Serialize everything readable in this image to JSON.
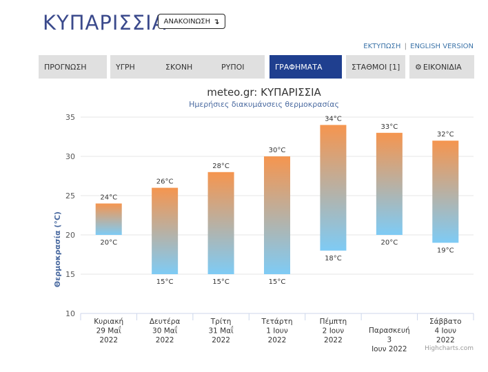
{
  "page": {
    "city": "ΚΥΠΑΡΙΣΣΙΑ",
    "announcement_label": "ΑΝΑΚΟΙΝΩΣΗ",
    "announcement_icon": "arrow-turn-down-icon",
    "print_link": "ΕΚΤΥΠΩΣΗ",
    "link_separator": "|",
    "english_link": "ENGLISH VERSION"
  },
  "tabs": [
    {
      "label": "ΠΡΟΓΝΩΣΗ",
      "active": false
    },
    {
      "label": "ΥΓΡΗ",
      "active": false
    },
    {
      "label": "ΣΚΟΝΗ",
      "active": false
    },
    {
      "label": "ΡΥΠΟΙ",
      "active": false
    },
    {
      "label": "ΓΡΑΦΗΜΑΤΑ",
      "active": true
    },
    {
      "label": "ΣΤΑΘΜΟΙ [1]",
      "active": false
    },
    {
      "label": "ΕΙΚΟΝΙΔΙΑ",
      "active": false,
      "icon": "gear-icon"
    }
  ],
  "colors": {
    "accent": "#1f3f8f",
    "title_text": "#3b4a8c",
    "bar_top": "#f5954f",
    "bar_bottom": "#7ecbf5"
  },
  "chart_data": {
    "type": "bar",
    "subtype": "columnrange",
    "title": "meteo.gr: ΚΥΠΑΡΙΣΣΙΑ",
    "subtitle": "Ημερήσιες διακυμάνσεις θερμοκρασίας",
    "ylabel": "Θερμοκρασία (°C)",
    "ylim": [
      10,
      35
    ],
    "yticks": [
      10,
      15,
      20,
      25,
      30,
      35
    ],
    "grid": true,
    "categories": [
      [
        "Κυριακή",
        "29 Μαΐ",
        "2022"
      ],
      [
        "Δευτέρα",
        "30 Μαΐ",
        "2022"
      ],
      [
        "Τρίτη",
        "31 Μαΐ",
        "2022"
      ],
      [
        "Τετάρτη",
        "1 Ιουν",
        "2022"
      ],
      [
        "Πέμπτη",
        "2 Ιουν",
        "2022"
      ],
      [
        "Παρασκευή",
        "3",
        "Ιουν 2022"
      ],
      [
        "Σάββατο",
        "4 Ιουν",
        "2022"
      ]
    ],
    "low": [
      20,
      15,
      15,
      15,
      18,
      20,
      19
    ],
    "high": [
      24,
      26,
      28,
      30,
      34,
      33,
      32
    ],
    "low_labels": [
      "20°C",
      "15°C",
      "15°C",
      "15°C",
      "18°C",
      "20°C",
      "19°C"
    ],
    "high_labels": [
      "24°C",
      "26°C",
      "28°C",
      "30°C",
      "34°C",
      "33°C",
      "32°C"
    ],
    "credits": "Highcharts.com"
  }
}
